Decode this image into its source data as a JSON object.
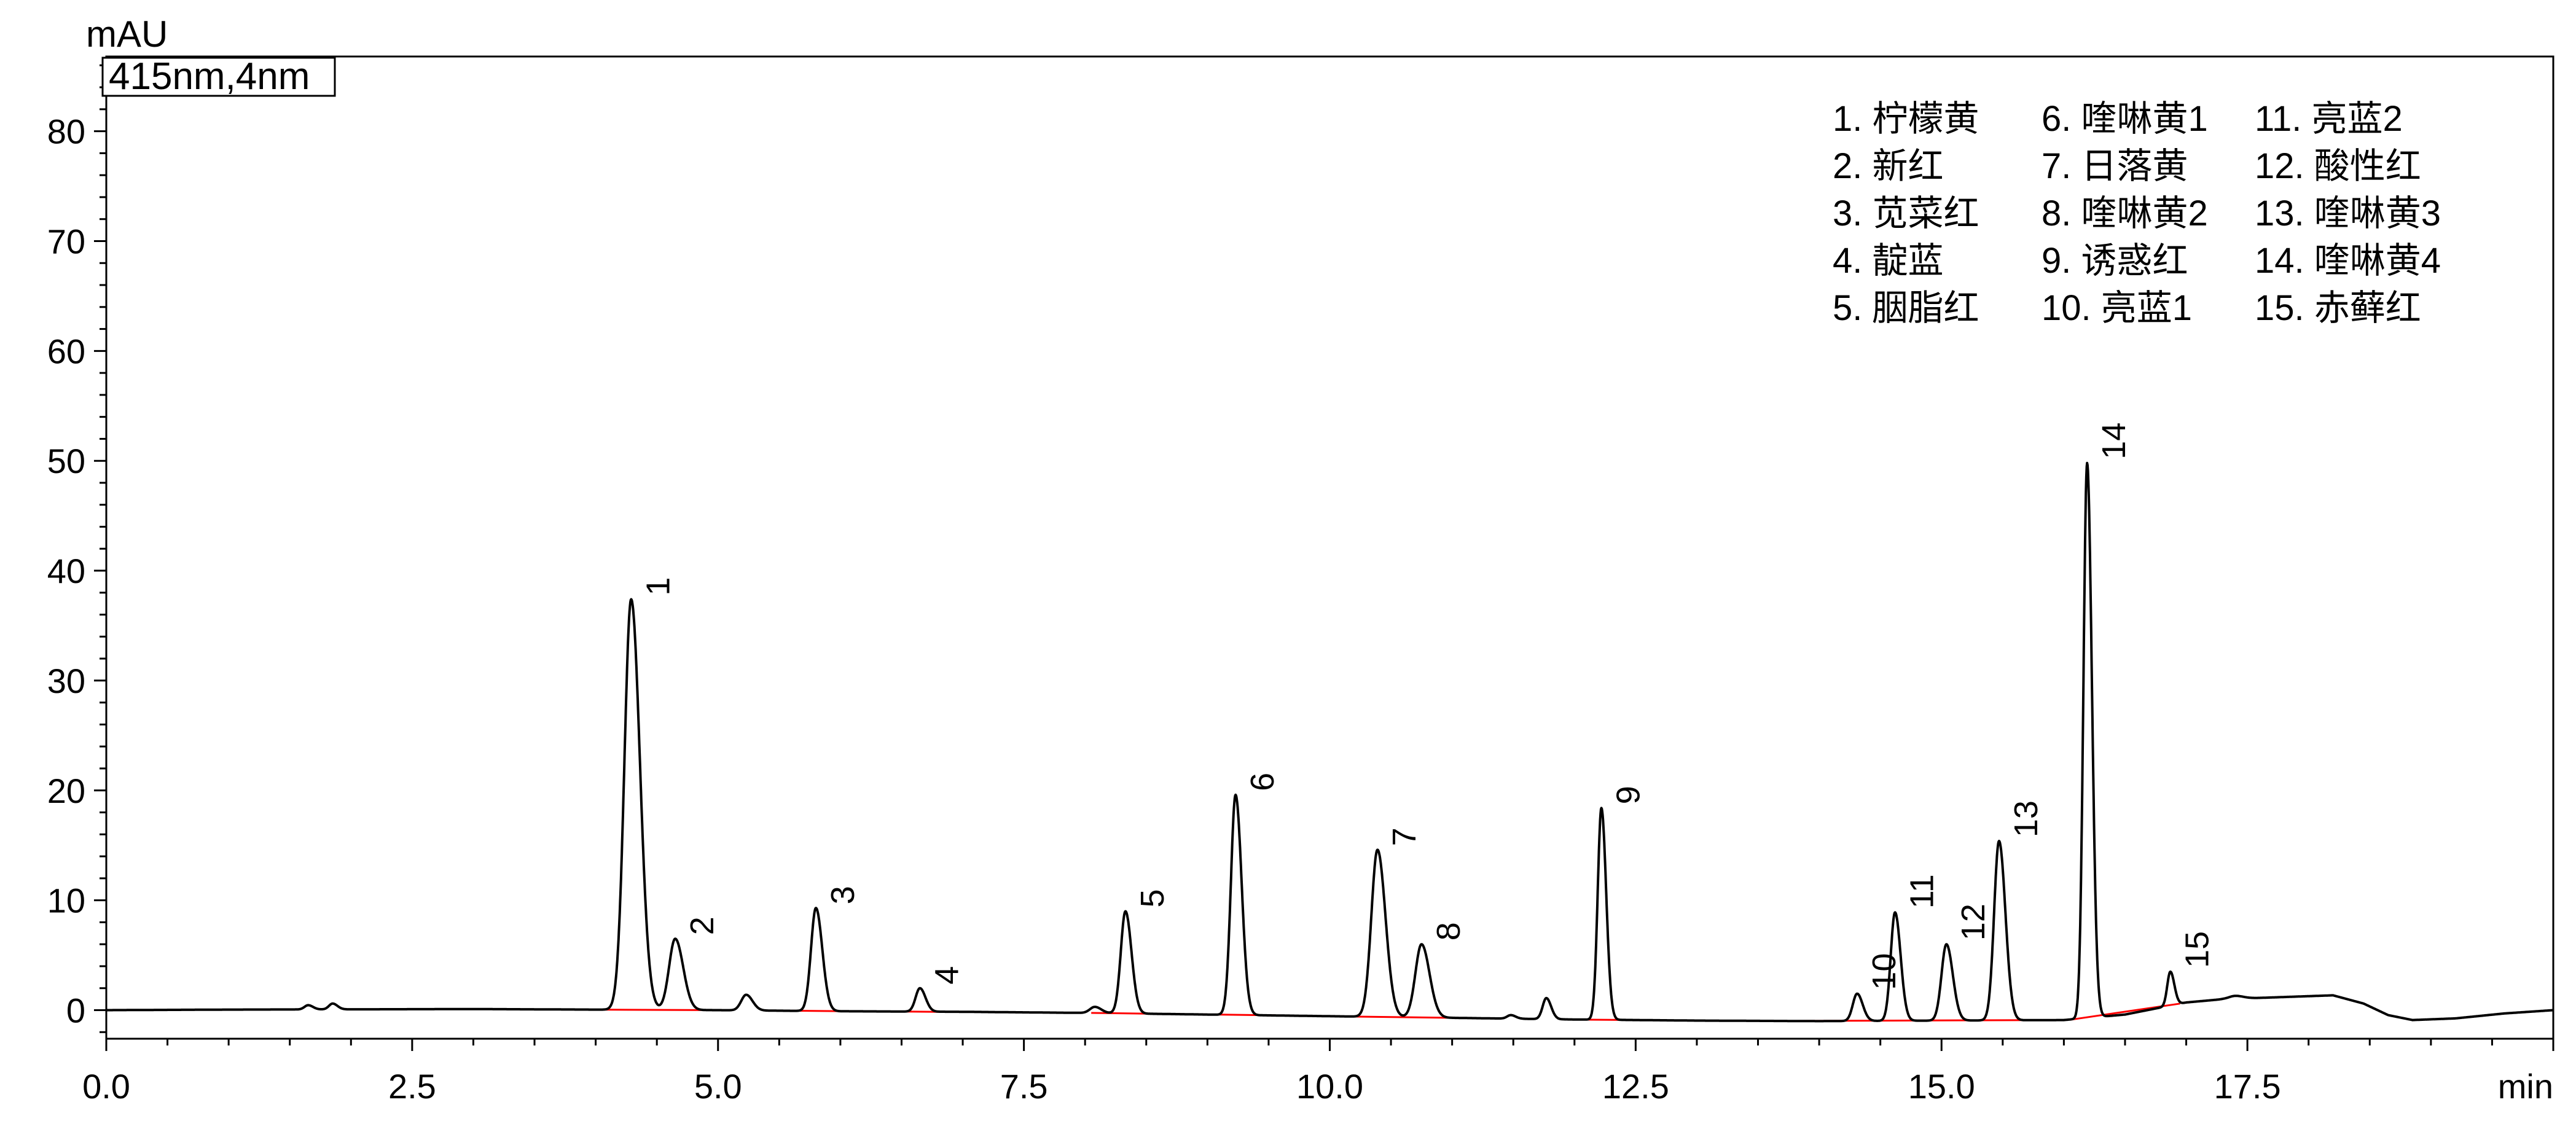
{
  "chart_data": {
    "type": "line",
    "xlabel": "min",
    "ylabel": "mAU",
    "annotation": "415nm,4nm",
    "xlim": [
      0,
      20
    ],
    "ylim": [
      -2.6,
      86.8
    ],
    "x_tick_values": [
      0,
      2.5,
      5,
      7.5,
      10,
      12.5,
      15,
      17.5
    ],
    "x_tick_labels": [
      "0.0",
      "2.5",
      "5.0",
      "7.5",
      "10.0",
      "12.5",
      "15.0",
      "17.5"
    ],
    "x_minor_step": 0.5,
    "y_tick_values": [
      0,
      10,
      20,
      30,
      40,
      50,
      60,
      70,
      80
    ],
    "y_tick_labels": [
      "0",
      "10",
      "20",
      "30",
      "40",
      "50",
      "60",
      "70",
      "80"
    ],
    "y_minor_step": 2,
    "grid": false,
    "colors": {
      "trace": "#000000",
      "axis": "#000000",
      "integration_baseline": "#ff0000"
    },
    "peaks": [
      {
        "label": "1",
        "rt": 4.29,
        "height": 37.4,
        "sigma": 0.055
      },
      {
        "label": "2",
        "rt": 4.65,
        "height": 6.5,
        "sigma": 0.05
      },
      {
        "label": "3",
        "rt": 5.8,
        "height": 9.3,
        "sigma": 0.04
      },
      {
        "label": "4",
        "rt": 6.65,
        "height": 2.0,
        "sigma": 0.035
      },
      {
        "label": "5",
        "rt": 8.33,
        "height": 9.0,
        "sigma": 0.038
      },
      {
        "label": "6",
        "rt": 9.23,
        "height": 19.6,
        "sigma": 0.038
      },
      {
        "label": "7",
        "rt": 10.39,
        "height": 14.6,
        "sigma": 0.05
      },
      {
        "label": "8",
        "rt": 10.75,
        "height": 6.0,
        "sigma": 0.05
      },
      {
        "label": "9",
        "rt": 12.22,
        "height": 18.4,
        "sigma": 0.03
      },
      {
        "label": "10",
        "rt": 14.31,
        "height": 1.5,
        "sigma": 0.035
      },
      {
        "label": "11",
        "rt": 14.62,
        "height": 8.9,
        "sigma": 0.035
      },
      {
        "label": "12",
        "rt": 15.04,
        "height": 6.0,
        "sigma": 0.04
      },
      {
        "label": "13",
        "rt": 15.47,
        "height": 15.4,
        "sigma": 0.04
      },
      {
        "label": "14",
        "rt": 16.19,
        "height": 49.8,
        "sigma": 0.03
      },
      {
        "label": "15",
        "rt": 16.87,
        "height": 3.5,
        "sigma": 0.025
      }
    ],
    "unlabeled_peaks": [
      {
        "rt": 1.65,
        "height": 0.45,
        "sigma": 0.03
      },
      {
        "rt": 1.85,
        "height": 0.6,
        "sigma": 0.03
      },
      {
        "rt": 5.23,
        "height": 1.4,
        "sigma": 0.04
      },
      {
        "rt": 8.08,
        "height": 0.3,
        "sigma": 0.04
      },
      {
        "rt": 11.48,
        "height": -0.45,
        "sigma": 0.03
      },
      {
        "rt": 11.77,
        "height": 1.1,
        "sigma": 0.03
      },
      {
        "rt": 17.4,
        "height": 1.3,
        "sigma": 0.05
      }
    ],
    "baseline": [
      [
        0.0,
        0.0
      ],
      [
        1.0,
        0.05
      ],
      [
        3.0,
        0.1
      ],
      [
        4.0,
        0.05
      ],
      [
        5.0,
        0.0
      ],
      [
        6.0,
        -0.1
      ],
      [
        7.0,
        -0.15
      ],
      [
        8.0,
        -0.25
      ],
      [
        9.0,
        -0.4
      ],
      [
        10.0,
        -0.55
      ],
      [
        11.0,
        -0.7
      ],
      [
        12.0,
        -0.85
      ],
      [
        13.0,
        -0.95
      ],
      [
        14.0,
        -1.0
      ],
      [
        15.0,
        -0.95
      ],
      [
        16.0,
        -0.9
      ],
      [
        16.5,
        -0.4
      ],
      [
        17.0,
        0.7
      ],
      [
        17.3,
        1.0
      ],
      [
        18.2,
        1.35
      ],
      [
        18.45,
        0.6
      ],
      [
        18.65,
        -0.45
      ],
      [
        18.85,
        -0.9
      ],
      [
        19.2,
        -0.75
      ],
      [
        19.6,
        -0.3
      ],
      [
        20.0,
        0.0
      ]
    ],
    "integration_baselines": [
      [
        [
          4.0,
          0.05
        ],
        [
          4.95,
          0.0
        ]
      ],
      [
        [
          5.6,
          -0.05
        ],
        [
          6.05,
          -0.1
        ]
      ],
      [
        [
          6.45,
          -0.12
        ],
        [
          6.95,
          -0.17
        ]
      ],
      [
        [
          8.05,
          -0.25
        ],
        [
          9.55,
          -0.47
        ]
      ],
      [
        [
          9.95,
          -0.55
        ],
        [
          11.15,
          -0.72
        ]
      ],
      [
        [
          11.95,
          -0.85
        ],
        [
          12.55,
          -0.9
        ]
      ],
      [
        [
          13.8,
          -0.98
        ],
        [
          15.95,
          -0.9
        ]
      ],
      [
        [
          16.05,
          -0.88
        ],
        [
          16.95,
          0.6
        ]
      ]
    ],
    "legend": {
      "position": "top-right",
      "items": [
        "1. 柠檬黄",
        "2. 新红",
        "3. 苋菜红",
        "4. 靛蓝",
        "5. 胭脂红",
        "6. 喹啉黄1",
        "7. 日落黄",
        "8. 喹啉黄2",
        "9. 诱惑红",
        "10. 亮蓝1",
        "11. 亮蓝2",
        "12. 酸性红",
        "13. 喹啉黄3",
        "14. 喹啉黄4",
        "15. 赤藓红"
      ]
    }
  }
}
